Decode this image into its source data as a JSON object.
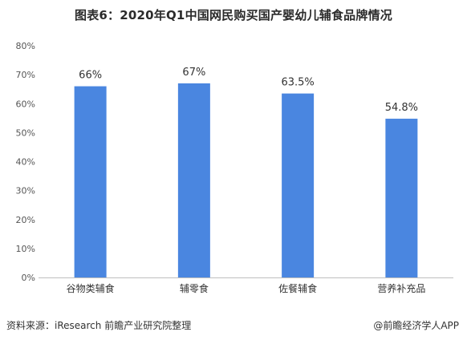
{
  "chart_data": {
    "type": "bar",
    "title": "图表6：2020年Q1中国网民购买国产婴幼儿辅食品牌情况",
    "categories": [
      "谷物类辅食",
      "辅零食",
      "佐餐辅食",
      "营养补充品"
    ],
    "values": [
      66,
      67,
      63.5,
      54.8
    ],
    "data_labels": [
      "66%",
      "67%",
      "63.5%",
      "54.8%"
    ],
    "yticks": [
      "0%",
      "10%",
      "20%",
      "30%",
      "40%",
      "50%",
      "60%",
      "70%",
      "80%"
    ],
    "ylim": [
      0,
      80
    ],
    "xlabel": "",
    "ylabel": "",
    "bar_color": "#4a86e0",
    "grid": false,
    "legend": "none"
  },
  "footer": {
    "source": "资料来源：iResearch 前瞻产业研究院整理",
    "credit": "@前瞻经济学人APP"
  }
}
